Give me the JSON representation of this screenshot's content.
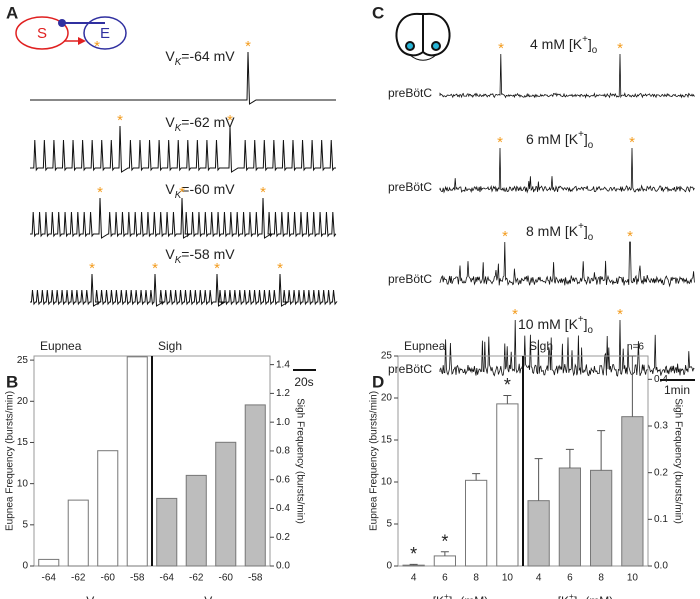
{
  "panel_labels": [
    "A",
    "B",
    "C",
    "D"
  ],
  "panel_a": {
    "diagram": [
      "S",
      "E"
    ],
    "trace_titles": [
      {
        "pre": "V",
        "sub": "K",
        "post": "=-64 mV"
      },
      {
        "pre": "V",
        "sub": "K",
        "post": "=-62 mV"
      },
      {
        "pre": "V",
        "sub": "K",
        "post": "=-60 mV"
      },
      {
        "pre": "V",
        "sub": "K",
        "post": "=-58 mV"
      }
    ],
    "marker": "*",
    "scale_bar": "20s"
  },
  "panel_c": {
    "trace_titles": [
      {
        "pre": "4 mM [K",
        "sup": "+",
        "mid": "]",
        "sub": "o"
      },
      {
        "pre": "6 mM [K",
        "sup": "+",
        "mid": "]",
        "sub": "o"
      },
      {
        "pre": "8 mM [K",
        "sup": "+",
        "mid": "]",
        "sub": "o"
      },
      {
        "pre": "10 mM [K",
        "sup": "+",
        "mid": "]",
        "sub": "o"
      }
    ],
    "region": "preBötC",
    "marker": "*",
    "scale_bar": "1min"
  },
  "chart_data": [
    {
      "type": "bar",
      "categories": [
        "-64",
        "-62",
        "-60",
        "-58"
      ],
      "x_label": {
        "pre": "V",
        "sub": "K"
      },
      "y_label": "Eupnea Frequency (bursts/min)",
      "y2_label": "Sigh Frequency (bursts/min)",
      "series": [
        {
          "name": "Eupnea",
          "color": "#ffffff",
          "values": [
            0.8,
            8,
            14,
            25.4
          ]
        },
        {
          "name": "Sigh",
          "color": "#bdbdbd",
          "axis": "y2",
          "values": [
            0.47,
            0.63,
            0.86,
            1.12
          ]
        }
      ],
      "ylim": [
        0,
        25.5
      ],
      "yticks": [
        0,
        5,
        10,
        15,
        20,
        25
      ],
      "y2lim": [
        0,
        1.46
      ],
      "y2ticks": [
        {
          "value": 0,
          "label": "0.0"
        },
        0.2,
        0.4,
        0.6,
        0.8,
        {
          "value": 1,
          "label": "1.0"
        },
        1.2,
        1.4
      ]
    },
    {
      "type": "bar",
      "categories": [
        "4",
        "6",
        "8",
        "10"
      ],
      "x_label": {
        "pre": "[K",
        "sup": "+",
        "mid": "]",
        "sub": "o",
        "post": " (mM)"
      },
      "y_label": "Eupnea Frequency (bursts/min)",
      "y2_label": "Sigh Frequency (bursts/min)",
      "series": [
        {
          "name": "Eupnea",
          "color": "#ffffff",
          "values": [
            0.1,
            1.2,
            10.2,
            19.3
          ],
          "errors": [
            0.1,
            0.5,
            0.8,
            1.0
          ]
        },
        {
          "name": "Sigh",
          "color": "#bdbdbd",
          "axis": "y2",
          "values": [
            0.14,
            0.21,
            0.205,
            0.32
          ],
          "errors": [
            0.09,
            0.04,
            0.085,
            0.13
          ]
        }
      ],
      "annotations": [
        {
          "index": 0,
          "text": "*"
        },
        {
          "index": 1,
          "text": "*"
        },
        {
          "index": 3,
          "text": "*"
        }
      ],
      "n_label": "n=6",
      "ylim": [
        0,
        25
      ],
      "yticks": [
        0,
        5,
        10,
        15,
        20,
        25
      ],
      "y2lim": [
        0,
        0.45
      ],
      "y2ticks": [
        {
          "value": 0,
          "label": "0.0"
        },
        0.1,
        0.2,
        0.3,
        0.4
      ]
    }
  ]
}
